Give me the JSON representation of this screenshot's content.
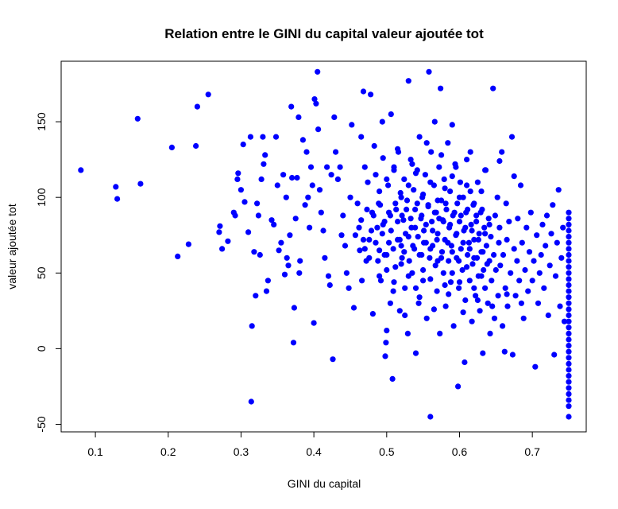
{
  "chart_data": {
    "type": "scatter",
    "title": "Relation entre le GINI du capital valeur ajoutée tot",
    "xlabel": "GINI du capital",
    "ylabel": "valeur ajoutée tot",
    "xlim": [
      0.053,
      0.774
    ],
    "ylim": [
      -55,
      190
    ],
    "xticks": [
      0.1,
      0.2,
      0.3,
      0.4,
      0.5,
      0.6,
      0.7
    ],
    "xtick_labels": [
      "0.1",
      "0.2",
      "0.3",
      "0.4",
      "0.5",
      "0.6",
      "0.7"
    ],
    "yticks": [
      -50,
      0,
      50,
      100,
      150
    ],
    "ytick_labels": [
      "-50",
      "0",
      "50",
      "100",
      "150"
    ],
    "grid": false,
    "legend": "none",
    "point_color": "#0000ff",
    "points": [
      [
        0.08,
        118
      ],
      [
        0.128,
        107
      ],
      [
        0.13,
        99
      ],
      [
        0.158,
        152
      ],
      [
        0.162,
        109
      ],
      [
        0.205,
        133
      ],
      [
        0.213,
        61
      ],
      [
        0.228,
        69
      ],
      [
        0.238,
        134
      ],
      [
        0.24,
        160
      ],
      [
        0.255,
        168
      ],
      [
        0.27,
        77
      ],
      [
        0.271,
        81
      ],
      [
        0.274,
        66
      ],
      [
        0.282,
        71
      ],
      [
        0.29,
        90
      ],
      [
        0.292,
        88
      ],
      [
        0.295,
        112
      ],
      [
        0.296,
        116
      ],
      [
        0.3,
        105
      ],
      [
        0.303,
        135
      ],
      [
        0.305,
        97
      ],
      [
        0.31,
        77
      ],
      [
        0.313,
        140
      ],
      [
        0.314,
        -35
      ],
      [
        0.315,
        15
      ],
      [
        0.318,
        64
      ],
      [
        0.32,
        35
      ],
      [
        0.322,
        96
      ],
      [
        0.324,
        88
      ],
      [
        0.326,
        62
      ],
      [
        0.328,
        112
      ],
      [
        0.33,
        140
      ],
      [
        0.331,
        122
      ],
      [
        0.333,
        128
      ],
      [
        0.335,
        38
      ],
      [
        0.337,
        45
      ],
      [
        0.342,
        85
      ],
      [
        0.345,
        82
      ],
      [
        0.348,
        140
      ],
      [
        0.35,
        108
      ],
      [
        0.352,
        65
      ],
      [
        0.355,
        70
      ],
      [
        0.358,
        115
      ],
      [
        0.36,
        49
      ],
      [
        0.362,
        100
      ],
      [
        0.363,
        60
      ],
      [
        0.365,
        55
      ],
      [
        0.367,
        75
      ],
      [
        0.369,
        160
      ],
      [
        0.37,
        113
      ],
      [
        0.372,
        4
      ],
      [
        0.373,
        27
      ],
      [
        0.375,
        86
      ],
      [
        0.377,
        113
      ],
      [
        0.379,
        153
      ],
      [
        0.38,
        50
      ],
      [
        0.381,
        58
      ],
      [
        0.385,
        138
      ],
      [
        0.388,
        95
      ],
      [
        0.39,
        130
      ],
      [
        0.392,
        100
      ],
      [
        0.394,
        80
      ],
      [
        0.396,
        120
      ],
      [
        0.398,
        108
      ],
      [
        0.4,
        17
      ],
      [
        0.401,
        165
      ],
      [
        0.403,
        162
      ],
      [
        0.405,
        183
      ],
      [
        0.406,
        145
      ],
      [
        0.408,
        105
      ],
      [
        0.41,
        90
      ],
      [
        0.413,
        78
      ],
      [
        0.415,
        60
      ],
      [
        0.418,
        120
      ],
      [
        0.42,
        48
      ],
      [
        0.422,
        42
      ],
      [
        0.424,
        115
      ],
      [
        0.426,
        -7
      ],
      [
        0.428,
        153
      ],
      [
        0.43,
        130
      ],
      [
        0.433,
        112
      ],
      [
        0.436,
        120
      ],
      [
        0.438,
        75
      ],
      [
        0.44,
        88
      ],
      [
        0.443,
        68
      ],
      [
        0.445,
        50
      ],
      [
        0.448,
        40
      ],
      [
        0.45,
        100
      ],
      [
        0.452,
        148
      ],
      [
        0.455,
        27
      ],
      [
        0.457,
        75
      ],
      [
        0.46,
        96
      ],
      [
        0.462,
        80
      ],
      [
        0.463,
        65
      ],
      [
        0.465,
        140
      ],
      [
        0.466,
        45
      ],
      [
        0.468,
        170
      ],
      [
        0.47,
        120
      ],
      [
        0.472,
        58
      ],
      [
        0.474,
        110
      ],
      [
        0.476,
        72
      ],
      [
        0.478,
        168
      ],
      [
        0.48,
        90
      ],
      [
        0.481,
        23
      ],
      [
        0.483,
        134
      ],
      [
        0.485,
        115
      ],
      [
        0.487,
        80
      ],
      [
        0.489,
        96
      ],
      [
        0.49,
        65
      ],
      [
        0.492,
        45
      ],
      [
        0.494,
        150
      ],
      [
        0.495,
        82
      ],
      [
        0.497,
        62
      ],
      [
        0.498,
        -5
      ],
      [
        0.499,
        4
      ],
      [
        0.5,
        12
      ],
      [
        0.502,
        108
      ],
      [
        0.503,
        70
      ],
      [
        0.505,
        88
      ],
      [
        0.506,
        155
      ],
      [
        0.508,
        -20
      ],
      [
        0.509,
        38
      ],
      [
        0.51,
        120
      ],
      [
        0.512,
        54
      ],
      [
        0.513,
        92
      ],
      [
        0.515,
        72
      ],
      [
        0.516,
        130
      ],
      [
        0.518,
        25
      ],
      [
        0.519,
        103
      ],
      [
        0.52,
        68
      ],
      [
        0.521,
        60
      ],
      [
        0.523,
        85
      ],
      [
        0.524,
        112
      ],
      [
        0.525,
        40
      ],
      [
        0.526,
        76
      ],
      [
        0.528,
        98
      ],
      [
        0.529,
        10
      ],
      [
        0.53,
        177
      ],
      [
        0.531,
        58
      ],
      [
        0.533,
        125
      ],
      [
        0.534,
        80
      ],
      [
        0.535,
        50
      ],
      [
        0.537,
        105
      ],
      [
        0.538,
        66
      ],
      [
        0.539,
        92
      ],
      [
        0.54,
        -3
      ],
      [
        0.542,
        118
      ],
      [
        0.543,
        74
      ],
      [
        0.544,
        30
      ],
      [
        0.545,
        140
      ],
      [
        0.547,
        86
      ],
      [
        0.548,
        62
      ],
      [
        0.549,
        100
      ],
      [
        0.55,
        45
      ],
      [
        0.551,
        78
      ],
      [
        0.553,
        115
      ],
      [
        0.554,
        70
      ],
      [
        0.555,
        20
      ],
      [
        0.557,
        95
      ],
      [
        0.558,
        183
      ],
      [
        0.559,
        60
      ],
      [
        0.56,
        -45
      ],
      [
        0.561,
        130
      ],
      [
        0.562,
        84
      ],
      [
        0.563,
        68
      ],
      [
        0.565,
        108
      ],
      [
        0.566,
        150
      ],
      [
        0.567,
        55
      ],
      [
        0.568,
        90
      ],
      [
        0.569,
        38
      ],
      [
        0.57,
        76
      ],
      [
        0.572,
        120
      ],
      [
        0.573,
        10
      ],
      [
        0.574,
        172
      ],
      [
        0.575,
        98
      ],
      [
        0.576,
        64
      ],
      [
        0.577,
        85
      ],
      [
        0.578,
        50
      ],
      [
        0.579,
        112
      ],
      [
        0.58,
        72
      ],
      [
        0.581,
        28
      ],
      [
        0.582,
        92
      ],
      [
        0.584,
        136
      ],
      [
        0.585,
        58
      ],
      [
        0.586,
        80
      ],
      [
        0.587,
        104
      ],
      [
        0.588,
        44
      ],
      [
        0.589,
        68
      ],
      [
        0.59,
        148
      ],
      [
        0.591,
        88
      ],
      [
        0.592,
        15
      ],
      [
        0.594,
        122
      ],
      [
        0.595,
        75
      ],
      [
        0.596,
        60
      ],
      [
        0.597,
        96
      ],
      [
        0.598,
        -25
      ],
      [
        0.599,
        40
      ],
      [
        0.6,
        84
      ],
      [
        0.601,
        110
      ],
      [
        0.602,
        66
      ],
      [
        0.604,
        52
      ],
      [
        0.605,
        100
      ],
      [
        0.606,
        78
      ],
      [
        0.607,
        -9
      ],
      [
        0.608,
        32
      ],
      [
        0.609,
        90
      ],
      [
        0.61,
        125
      ],
      [
        0.611,
        62
      ],
      [
        0.613,
        70
      ],
      [
        0.614,
        45
      ],
      [
        0.615,
        104
      ],
      [
        0.616,
        82
      ],
      [
        0.617,
        18
      ],
      [
        0.618,
        56
      ],
      [
        0.619,
        95
      ],
      [
        0.62,
        72
      ],
      [
        0.622,
        35
      ],
      [
        0.623,
        88
      ],
      [
        0.624,
        60
      ],
      [
        0.625,
        110
      ],
      [
        0.626,
        48
      ],
      [
        0.627,
        76
      ],
      [
        0.628,
        25
      ],
      [
        0.63,
        64
      ],
      [
        0.631,
        92
      ],
      [
        0.632,
        -3
      ],
      [
        0.633,
        52
      ],
      [
        0.634,
        80
      ],
      [
        0.635,
        40
      ],
      [
        0.636,
        118
      ],
      [
        0.637,
        68
      ],
      [
        0.639,
        30
      ],
      [
        0.64,
        86
      ],
      [
        0.641,
        58
      ],
      [
        0.642,
        10
      ],
      [
        0.643,
        74
      ],
      [
        0.644,
        45
      ],
      [
        0.646,
        172
      ],
      [
        0.647,
        62
      ],
      [
        0.648,
        20
      ],
      [
        0.649,
        88
      ],
      [
        0.65,
        52
      ],
      [
        0.652,
        100
      ],
      [
        0.653,
        35
      ],
      [
        0.654,
        70
      ],
      [
        0.655,
        80
      ],
      [
        0.656,
        55
      ],
      [
        0.658,
        130
      ],
      [
        0.659,
        15
      ],
      [
        0.66,
        62
      ],
      [
        0.662,
        -2
      ],
      [
        0.663,
        40
      ],
      [
        0.664,
        96
      ],
      [
        0.665,
        72
      ],
      [
        0.666,
        28
      ],
      [
        0.668,
        84
      ],
      [
        0.67,
        50
      ],
      [
        0.672,
        140
      ],
      [
        0.673,
        -4
      ],
      [
        0.675,
        66
      ],
      [
        0.677,
        35
      ],
      [
        0.679,
        58
      ],
      [
        0.68,
        86
      ],
      [
        0.682,
        45
      ],
      [
        0.684,
        108
      ],
      [
        0.686,
        70
      ],
      [
        0.688,
        20
      ],
      [
        0.69,
        52
      ],
      [
        0.692,
        80
      ],
      [
        0.694,
        38
      ],
      [
        0.696,
        64
      ],
      [
        0.698,
        90
      ],
      [
        0.7,
        45
      ],
      [
        0.702,
        58
      ],
      [
        0.704,
        -12
      ],
      [
        0.706,
        75
      ],
      [
        0.708,
        30
      ],
      [
        0.71,
        50
      ],
      [
        0.712,
        62
      ],
      [
        0.714,
        82
      ],
      [
        0.716,
        40
      ],
      [
        0.718,
        68
      ],
      [
        0.72,
        88
      ],
      [
        0.722,
        22
      ],
      [
        0.724,
        55
      ],
      [
        0.726,
        76
      ],
      [
        0.728,
        95
      ],
      [
        0.73,
        -4
      ],
      [
        0.732,
        48
      ],
      [
        0.734,
        70
      ],
      [
        0.736,
        105
      ],
      [
        0.738,
        28
      ],
      [
        0.74,
        60
      ],
      [
        0.742,
        80
      ],
      [
        0.744,
        18
      ],
      [
        0.75,
        -45
      ],
      [
        0.75,
        -38
      ],
      [
        0.75,
        -34
      ],
      [
        0.75,
        -30
      ],
      [
        0.75,
        -26
      ],
      [
        0.75,
        -22
      ],
      [
        0.75,
        -18
      ],
      [
        0.75,
        -14
      ],
      [
        0.75,
        -10
      ],
      [
        0.75,
        -6
      ],
      [
        0.75,
        -2
      ],
      [
        0.75,
        2
      ],
      [
        0.75,
        6
      ],
      [
        0.75,
        10
      ],
      [
        0.75,
        14
      ],
      [
        0.75,
        18
      ],
      [
        0.75,
        22
      ],
      [
        0.75,
        26
      ],
      [
        0.75,
        30
      ],
      [
        0.75,
        34
      ],
      [
        0.75,
        38
      ],
      [
        0.75,
        42
      ],
      [
        0.75,
        46
      ],
      [
        0.75,
        50
      ],
      [
        0.75,
        54
      ],
      [
        0.75,
        58
      ],
      [
        0.75,
        62
      ],
      [
        0.75,
        66
      ],
      [
        0.75,
        70
      ],
      [
        0.75,
        74
      ],
      [
        0.75,
        78
      ],
      [
        0.75,
        82
      ],
      [
        0.75,
        86
      ],
      [
        0.75,
        90
      ],
      [
        0.465,
        85
      ],
      [
        0.468,
        72
      ],
      [
        0.47,
        66
      ],
      [
        0.473,
        92
      ],
      [
        0.476,
        60
      ],
      [
        0.479,
        78
      ],
      [
        0.482,
        88
      ],
      [
        0.485,
        70
      ],
      [
        0.488,
        58
      ],
      [
        0.491,
        95
      ],
      [
        0.494,
        76
      ],
      [
        0.497,
        84
      ],
      [
        0.5,
        62
      ],
      [
        0.503,
        90
      ],
      [
        0.506,
        78
      ],
      [
        0.509,
        66
      ],
      [
        0.512,
        96
      ],
      [
        0.515,
        84
      ],
      [
        0.518,
        72
      ],
      [
        0.521,
        88
      ],
      [
        0.524,
        64
      ],
      [
        0.527,
        92
      ],
      [
        0.53,
        74
      ],
      [
        0.533,
        86
      ],
      [
        0.536,
        68
      ],
      [
        0.539,
        80
      ],
      [
        0.542,
        96
      ],
      [
        0.545,
        62
      ],
      [
        0.548,
        88
      ],
      [
        0.551,
        70
      ],
      [
        0.554,
        82
      ],
      [
        0.557,
        94
      ],
      [
        0.56,
        66
      ],
      [
        0.563,
        78
      ],
      [
        0.566,
        90
      ],
      [
        0.569,
        72
      ],
      [
        0.572,
        86
      ],
      [
        0.575,
        60
      ],
      [
        0.578,
        84
      ],
      [
        0.581,
        96
      ],
      [
        0.584,
        70
      ],
      [
        0.587,
        82
      ],
      [
        0.59,
        64
      ],
      [
        0.593,
        90
      ],
      [
        0.596,
        76
      ],
      [
        0.599,
        58
      ],
      [
        0.602,
        88
      ],
      [
        0.605,
        70
      ],
      [
        0.608,
        80
      ],
      [
        0.611,
        92
      ],
      [
        0.614,
        66
      ],
      [
        0.617,
        78
      ],
      [
        0.62,
        60
      ],
      [
        0.623,
        84
      ],
      [
        0.626,
        72
      ],
      [
        0.629,
        90
      ],
      [
        0.632,
        64
      ],
      [
        0.635,
        76
      ],
      [
        0.638,
        56
      ],
      [
        0.641,
        82
      ],
      [
        0.49,
        104
      ],
      [
        0.5,
        112
      ],
      [
        0.51,
        118
      ],
      [
        0.52,
        100
      ],
      [
        0.53,
        108
      ],
      [
        0.54,
        116
      ],
      [
        0.55,
        102
      ],
      [
        0.56,
        110
      ],
      [
        0.57,
        98
      ],
      [
        0.58,
        106
      ],
      [
        0.59,
        114
      ],
      [
        0.6,
        100
      ],
      [
        0.61,
        108
      ],
      [
        0.62,
        96
      ],
      [
        0.63,
        104
      ],
      [
        0.49,
        48
      ],
      [
        0.5,
        52
      ],
      [
        0.51,
        44
      ],
      [
        0.52,
        56
      ],
      [
        0.53,
        48
      ],
      [
        0.54,
        40
      ],
      [
        0.55,
        52
      ],
      [
        0.56,
        46
      ],
      [
        0.57,
        58
      ],
      [
        0.58,
        42
      ],
      [
        0.59,
        50
      ],
      [
        0.6,
        44
      ],
      [
        0.61,
        54
      ],
      [
        0.62,
        40
      ],
      [
        0.63,
        48
      ],
      [
        0.505,
        30
      ],
      [
        0.525,
        22
      ],
      [
        0.545,
        34
      ],
      [
        0.565,
        26
      ],
      [
        0.585,
        36
      ],
      [
        0.605,
        24
      ],
      [
        0.625,
        32
      ],
      [
        0.645,
        28
      ],
      [
        0.665,
        36
      ],
      [
        0.685,
        30
      ],
      [
        0.495,
        126
      ],
      [
        0.515,
        132
      ],
      [
        0.535,
        122
      ],
      [
        0.555,
        136
      ],
      [
        0.575,
        128
      ],
      [
        0.595,
        120
      ],
      [
        0.615,
        130
      ],
      [
        0.635,
        118
      ],
      [
        0.655,
        124
      ],
      [
        0.675,
        114
      ]
    ]
  }
}
